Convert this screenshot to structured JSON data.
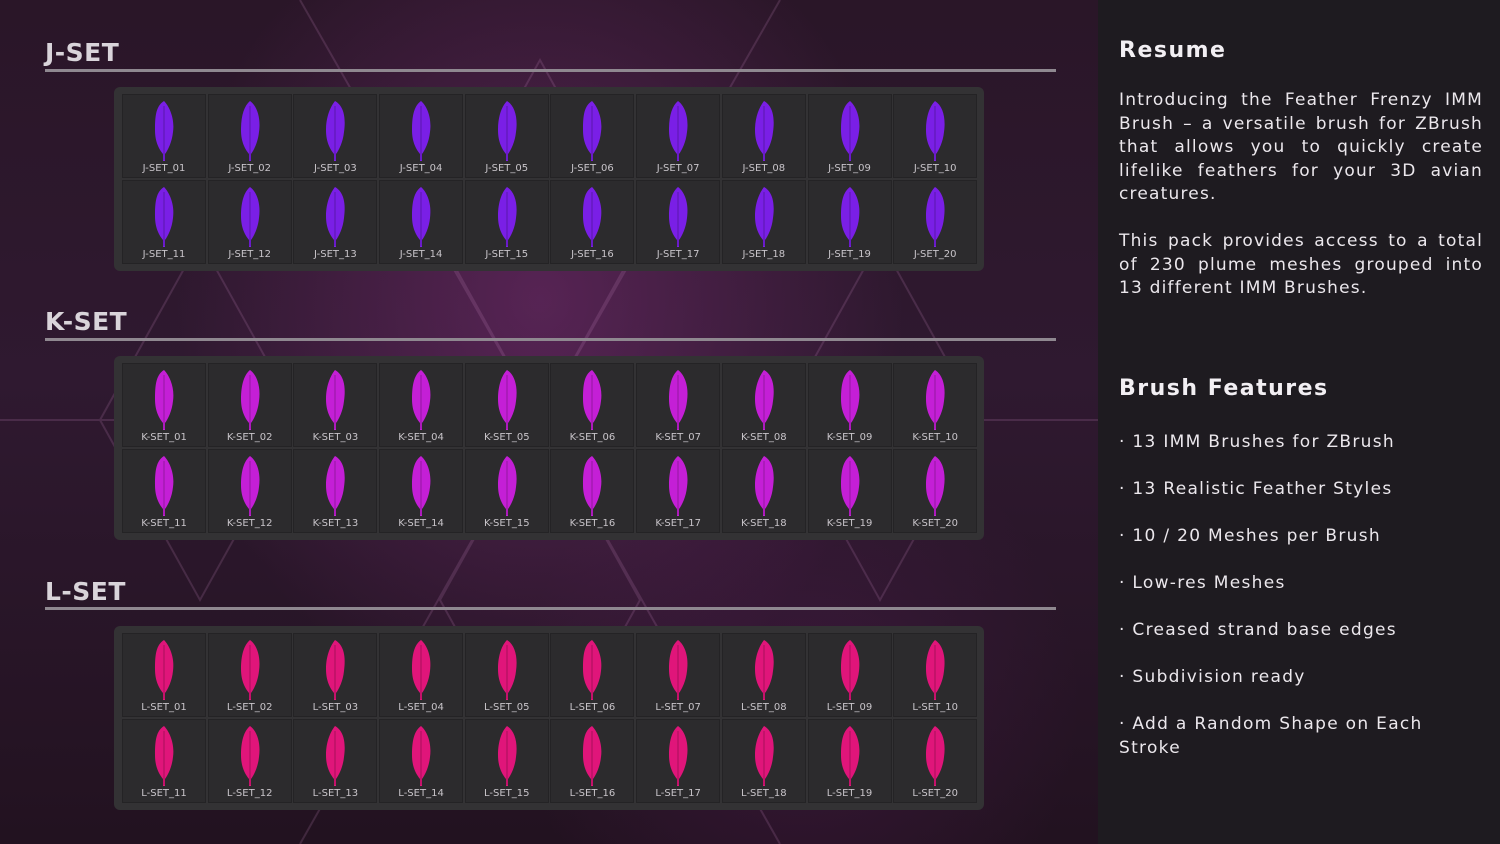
{
  "colors": {
    "j_feather": "#7a1fe6",
    "k_feather": "#c41fd6",
    "l_feather": "#e0157a"
  },
  "sets": [
    {
      "title": "J-SET",
      "color": "#7a1fe6",
      "items": [
        "J-SET_01",
        "J-SET_02",
        "J-SET_03",
        "J-SET_04",
        "J-SET_05",
        "J-SET_06",
        "J-SET_07",
        "J-SET_08",
        "J-SET_09",
        "J-SET_10",
        "J-SET_11",
        "J-SET_12",
        "J-SET_13",
        "J-SET_14",
        "J-SET_15",
        "J-SET_16",
        "J-SET_17",
        "J-SET_18",
        "J-SET_19",
        "J-SET_20"
      ]
    },
    {
      "title": "K-SET",
      "color": "#c41fd6",
      "items": [
        "K-SET_01",
        "K-SET_02",
        "K-SET_03",
        "K-SET_04",
        "K-SET_05",
        "K-SET_06",
        "K-SET_07",
        "K-SET_08",
        "K-SET_09",
        "K-SET_10",
        "K-SET_11",
        "K-SET_12",
        "K-SET_13",
        "K-SET_14",
        "K-SET_15",
        "K-SET_16",
        "K-SET_17",
        "K-SET_18",
        "K-SET_19",
        "K-SET_20"
      ]
    },
    {
      "title": "L-SET",
      "color": "#e0157a",
      "items": [
        "L-SET_01",
        "L-SET_02",
        "L-SET_03",
        "L-SET_04",
        "L-SET_05",
        "L-SET_06",
        "L-SET_07",
        "L-SET_08",
        "L-SET_09",
        "L-SET_10",
        "L-SET_11",
        "L-SET_12",
        "L-SET_13",
        "L-SET_14",
        "L-SET_15",
        "L-SET_16",
        "L-SET_17",
        "L-SET_18",
        "L-SET_19",
        "L-SET_20"
      ]
    }
  ],
  "resume": {
    "title": "Resume",
    "paragraph1": "Introducing the Feather Frenzy IMM Brush – a versatile brush for ZBrush that allows you to quickly create lifelike feathers for your 3D avian creatures.",
    "paragraph2": "This pack provides access to a total of 230 plume meshes grouped into 13 different IMM Brushes."
  },
  "features": {
    "title": "Brush Features",
    "items": [
      "· 13 IMM Brushes for ZBrush",
      "· 13 Realistic Feather Styles",
      "· 10 / 20 Meshes per Brush",
      "· Low-res Meshes",
      "· Creased strand base edges",
      "· Subdivision ready",
      "· Add a Random Shape on Each Stroke"
    ]
  }
}
